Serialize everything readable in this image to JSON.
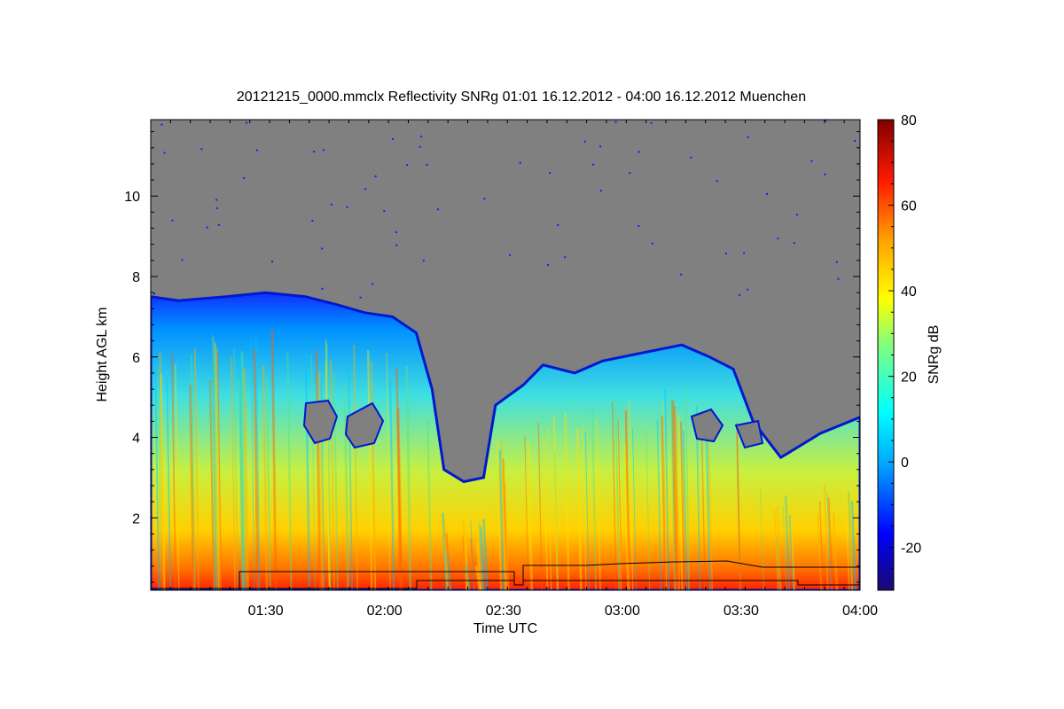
{
  "chart_data": {
    "type": "heatmap",
    "title": "20121215_0000.mmclx Reflectivity SNRg   01:01 16.12.2012 - 04:00 16.12.2012 Muenchen",
    "xlabel": "Time UTC",
    "ylabel": "Height AGL km",
    "colorbar_label": "SNRg dB",
    "x_range": [
      "01:01",
      "04:00"
    ],
    "x_ticks": [
      "01:30",
      "02:00",
      "02:30",
      "03:00",
      "03:30",
      "04:00"
    ],
    "ylim": [
      0.2,
      11.9
    ],
    "y_ticks": [
      2,
      4,
      6,
      8,
      10
    ],
    "colorbar_range": [
      -30,
      80
    ],
    "colorbar_ticks": [
      -20,
      0,
      20,
      40,
      60,
      80
    ],
    "background_color": "#808080",
    "cloud_top_profile": [
      {
        "time": "01:01",
        "top_km": 7.5
      },
      {
        "time": "01:08",
        "top_km": 7.4
      },
      {
        "time": "01:20",
        "top_km": 7.5
      },
      {
        "time": "01:30",
        "top_km": 7.6
      },
      {
        "time": "01:40",
        "top_km": 7.5
      },
      {
        "time": "01:48",
        "top_km": 7.3
      },
      {
        "time": "01:55",
        "top_km": 7.1
      },
      {
        "time": "02:02",
        "top_km": 7.0
      },
      {
        "time": "02:08",
        "top_km": 6.6
      },
      {
        "time": "02:12",
        "top_km": 5.2
      },
      {
        "time": "02:15",
        "top_km": 3.2
      },
      {
        "time": "02:20",
        "top_km": 2.9
      },
      {
        "time": "02:25",
        "top_km": 3.0
      },
      {
        "time": "02:28",
        "top_km": 4.8
      },
      {
        "time": "02:35",
        "top_km": 5.3
      },
      {
        "time": "02:40",
        "top_km": 5.8
      },
      {
        "time": "02:48",
        "top_km": 5.6
      },
      {
        "time": "02:55",
        "top_km": 5.9
      },
      {
        "time": "03:05",
        "top_km": 6.1
      },
      {
        "time": "03:15",
        "top_km": 6.3
      },
      {
        "time": "03:22",
        "top_km": 6.0
      },
      {
        "time": "03:28",
        "top_km": 5.7
      },
      {
        "time": "03:33",
        "top_km": 4.4
      },
      {
        "time": "03:40",
        "top_km": 3.5
      },
      {
        "time": "03:50",
        "top_km": 4.1
      },
      {
        "time": "04:00",
        "top_km": 4.5
      }
    ]
  }
}
